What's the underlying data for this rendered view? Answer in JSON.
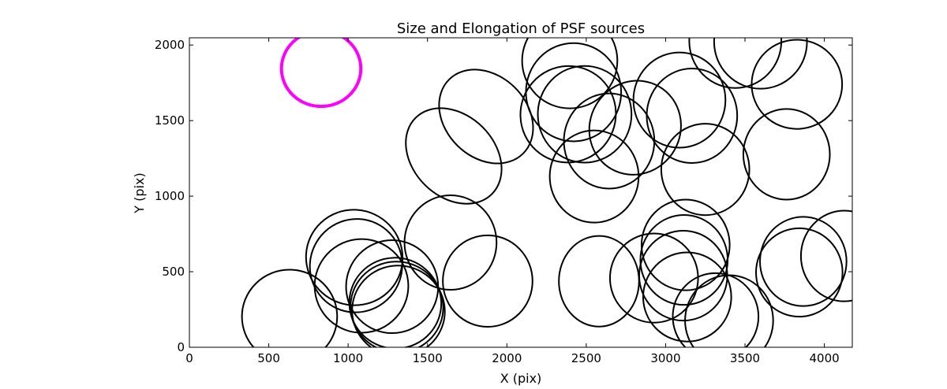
{
  "chart_data": {
    "type": "scatter",
    "title": "Size and Elongation of PSF sources",
    "xlabel": "X (pix)",
    "ylabel": "Y (pix)",
    "xlim": [
      0,
      4176
    ],
    "ylim": [
      0,
      2048
    ],
    "xticks": [
      0,
      500,
      1000,
      1500,
      2000,
      2500,
      3000,
      3500,
      4000
    ],
    "yticks": [
      0,
      500,
      1000,
      1500,
      2000
    ],
    "grid": false,
    "highlight": {
      "x": 830,
      "y": 1844,
      "w": 500,
      "h": 500,
      "angle": 0,
      "color": "#ff00ff"
    },
    "marker_color": "#000000",
    "ellipses": [
      {
        "x": 631,
        "y": 203,
        "w": 600,
        "h": 620,
        "angle": 0
      },
      {
        "x": 1039,
        "y": 594,
        "w": 610,
        "h": 630,
        "angle": -25
      },
      {
        "x": 1050,
        "y": 540,
        "w": 580,
        "h": 620,
        "angle": -25
      },
      {
        "x": 1084,
        "y": 406,
        "w": 590,
        "h": 620,
        "angle": -15
      },
      {
        "x": 1277,
        "y": 401,
        "w": 580,
        "h": 615,
        "angle": 0
      },
      {
        "x": 1297,
        "y": 292,
        "w": 580,
        "h": 600,
        "angle": -20
      },
      {
        "x": 1307,
        "y": 266,
        "w": 585,
        "h": 600,
        "angle": -20
      },
      {
        "x": 1317,
        "y": 240,
        "w": 585,
        "h": 600,
        "angle": -15
      },
      {
        "x": 1645,
        "y": 693,
        "w": 580,
        "h": 625,
        "angle": 0
      },
      {
        "x": 1879,
        "y": 438,
        "w": 565,
        "h": 605,
        "angle": 0
      },
      {
        "x": 1665,
        "y": 1266,
        "w": 680,
        "h": 540,
        "angle": -45
      },
      {
        "x": 1869,
        "y": 1527,
        "w": 660,
        "h": 540,
        "angle": -45
      },
      {
        "x": 2396,
        "y": 1896,
        "w": 600,
        "h": 630,
        "angle": 0
      },
      {
        "x": 2420,
        "y": 1688,
        "w": 600,
        "h": 650,
        "angle": 0
      },
      {
        "x": 2386,
        "y": 1542,
        "w": 600,
        "h": 640,
        "angle": -20
      },
      {
        "x": 2490,
        "y": 1542,
        "w": 590,
        "h": 640,
        "angle": 0
      },
      {
        "x": 2644,
        "y": 1365,
        "w": 570,
        "h": 630,
        "angle": 0
      },
      {
        "x": 2808,
        "y": 1453,
        "w": 570,
        "h": 630,
        "angle": -30
      },
      {
        "x": 2550,
        "y": 1130,
        "w": 560,
        "h": 610,
        "angle": 0
      },
      {
        "x": 3087,
        "y": 1636,
        "w": 580,
        "h": 630,
        "angle": 0
      },
      {
        "x": 3166,
        "y": 1532,
        "w": 570,
        "h": 625,
        "angle": 0
      },
      {
        "x": 3250,
        "y": 1177,
        "w": 555,
        "h": 605,
        "angle": 0
      },
      {
        "x": 3439,
        "y": 2026,
        "w": 580,
        "h": 620,
        "angle": 0
      },
      {
        "x": 3598,
        "y": 2021,
        "w": 585,
        "h": 620,
        "angle": 0
      },
      {
        "x": 3827,
        "y": 1740,
        "w": 570,
        "h": 590,
        "angle": 0
      },
      {
        "x": 3762,
        "y": 1277,
        "w": 545,
        "h": 600,
        "angle": 0
      },
      {
        "x": 2580,
        "y": 437,
        "w": 505,
        "h": 600,
        "angle": 0
      },
      {
        "x": 2927,
        "y": 458,
        "w": 555,
        "h": 590,
        "angle": 0
      },
      {
        "x": 3126,
        "y": 677,
        "w": 555,
        "h": 600,
        "angle": 0
      },
      {
        "x": 3116,
        "y": 578,
        "w": 550,
        "h": 595,
        "angle": 0
      },
      {
        "x": 3111,
        "y": 474,
        "w": 555,
        "h": 595,
        "angle": 0
      },
      {
        "x": 3136,
        "y": 333,
        "w": 555,
        "h": 590,
        "angle": 0
      },
      {
        "x": 3315,
        "y": 203,
        "w": 540,
        "h": 575,
        "angle": 0
      },
      {
        "x": 3400,
        "y": 177,
        "w": 555,
        "h": 600,
        "angle": 0
      },
      {
        "x": 3842,
        "y": 495,
        "w": 545,
        "h": 585,
        "angle": 0
      },
      {
        "x": 3867,
        "y": 568,
        "w": 545,
        "h": 590,
        "angle": 0
      },
      {
        "x": 4125,
        "y": 604,
        "w": 545,
        "h": 600,
        "angle": 0
      }
    ]
  }
}
